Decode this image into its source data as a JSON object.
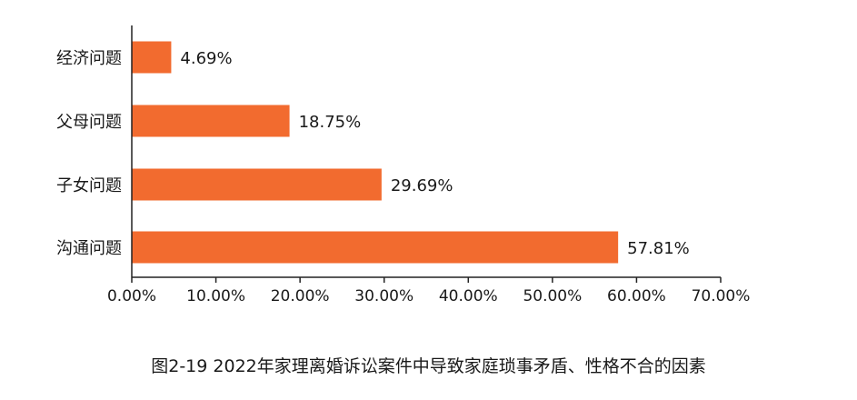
{
  "chart_data": {
    "type": "bar",
    "orientation": "horizontal",
    "categories": [
      "经济问题",
      "父母问题",
      "子女问题",
      "沟通问题"
    ],
    "values": [
      4.69,
      18.75,
      29.69,
      57.81
    ],
    "value_labels": [
      "4.69%",
      "18.75%",
      "29.69%",
      "57.81%"
    ],
    "xlim": [
      0,
      70
    ],
    "xticks": [
      0,
      10,
      20,
      30,
      40,
      50,
      60,
      70
    ],
    "xtick_labels": [
      "0.00%",
      "10.00%",
      "20.00%",
      "30.00%",
      "40.00%",
      "50.00%",
      "60.00%",
      "70.00%"
    ],
    "grid": false,
    "legend": "none",
    "bar_color": "#F26B2F",
    "axis_color": "#222222"
  },
  "caption": "图2-19  2022年家理离婚诉讼案件中导致家庭琐事矛盾、性格不合的因素"
}
